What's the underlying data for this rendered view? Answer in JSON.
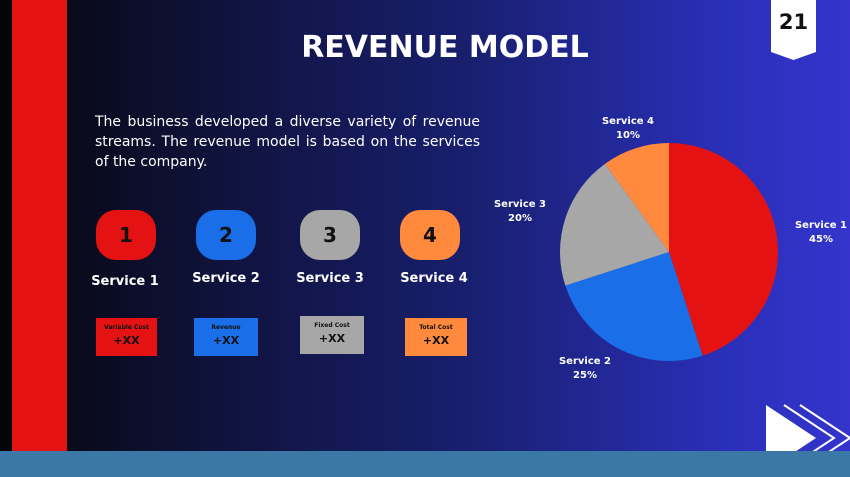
{
  "page_number": "21",
  "title": "REVENUE MODEL",
  "intro": "The business developed a diverse variety of revenue streams. The revenue model is based on the services of the company.",
  "colors": {
    "service1": "#e41212",
    "service2": "#1a6ee8",
    "service3": "#a7a7a7",
    "service4": "#ff8a3d",
    "stripe": "#e41212",
    "bottom_bar": "#3b78a6"
  },
  "services": [
    {
      "number": "1",
      "name": "Service 1",
      "box_label": "Variable Cost",
      "box_value": "+XX"
    },
    {
      "number": "2",
      "name": "Service 2",
      "box_label": "Revenue",
      "box_value": "+XX"
    },
    {
      "number": "3",
      "name": "Service 3",
      "box_label": "Fixed Cost",
      "box_value": "+XX"
    },
    {
      "number": "4",
      "name": "Service 4",
      "box_label": "Total Cost",
      "box_value": "+XX"
    }
  ],
  "chart_data": {
    "type": "pie",
    "title": "",
    "slices": [
      {
        "label": "Service 1",
        "value": 45,
        "value_label": "45%",
        "color": "#e41212"
      },
      {
        "label": "Service 2",
        "value": 25,
        "value_label": "25%",
        "color": "#1a6ee8"
      },
      {
        "label": "Service 3",
        "value": 20,
        "value_label": "20%",
        "color": "#a7a7a7"
      },
      {
        "label": "Service 4",
        "value": 10,
        "value_label": "10%",
        "color": "#ff8a3d"
      }
    ],
    "legend": "none",
    "labels": "outside"
  }
}
